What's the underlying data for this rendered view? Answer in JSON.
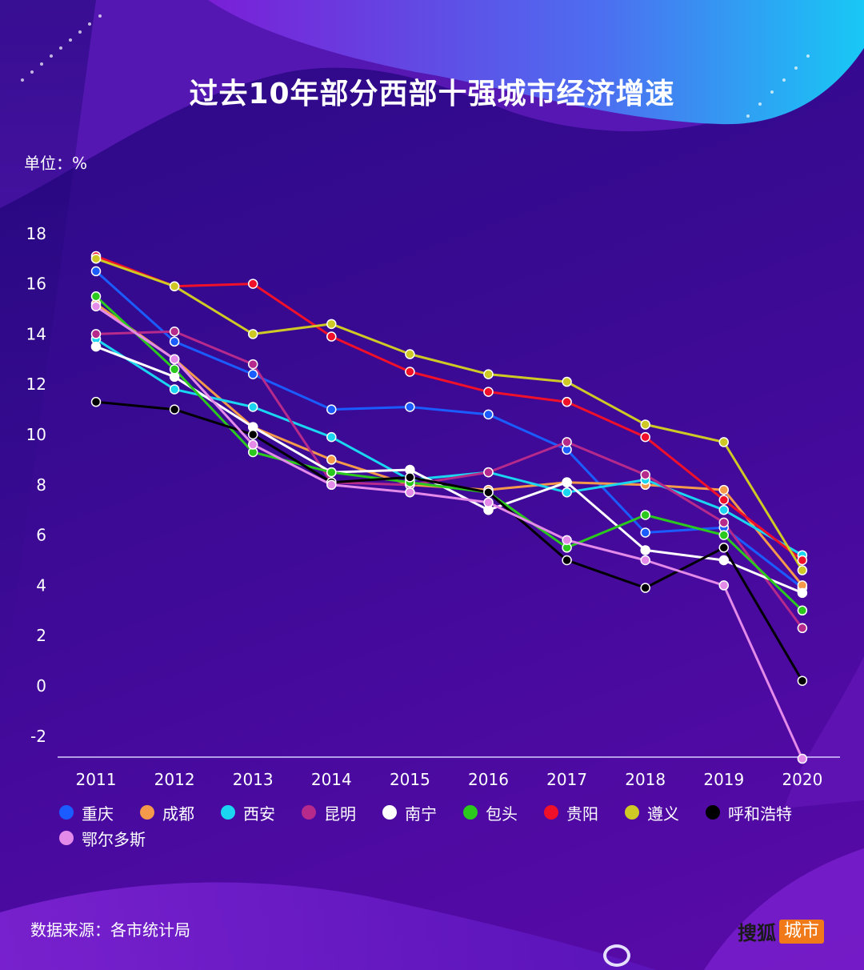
{
  "page": {
    "title": "过去10年部分西部十强城市经济增速",
    "unit": "单位：%",
    "source": "数据来源：各市统计局",
    "brand_name": "搜狐",
    "brand_badge": "城市"
  },
  "chart_data": {
    "type": "line",
    "title": "过去10年部分西部十强城市经济增速",
    "ylabel": "单位：%",
    "xlabel": "",
    "ylim": [
      -3,
      18
    ],
    "yticks": [
      -2,
      0,
      2,
      4,
      6,
      8,
      10,
      12,
      14,
      16,
      18
    ],
    "categories": [
      "2011",
      "2012",
      "2013",
      "2014",
      "2015",
      "2016",
      "2017",
      "2018",
      "2019",
      "2020"
    ],
    "series": [
      {
        "name": "重庆",
        "color": "#1a5cff",
        "values": [
          16.5,
          13.7,
          12.4,
          11.0,
          11.1,
          10.8,
          9.4,
          6.1,
          6.3,
          3.9
        ]
      },
      {
        "name": "成都",
        "color": "#f59a4a",
        "values": [
          15.2,
          13.0,
          10.3,
          9.0,
          8.0,
          7.8,
          8.1,
          8.0,
          7.8,
          4.0
        ]
      },
      {
        "name": "西安",
        "color": "#1ad6f0",
        "values": [
          13.8,
          11.8,
          11.1,
          9.9,
          8.2,
          8.5,
          7.7,
          8.2,
          7.0,
          5.2
        ]
      },
      {
        "name": "昆明",
        "color": "#b52a8a",
        "values": [
          14.0,
          14.1,
          12.8,
          8.1,
          8.0,
          8.5,
          9.7,
          8.4,
          6.5,
          2.3
        ]
      },
      {
        "name": "南宁",
        "color": "#ffffff",
        "values": [
          13.5,
          12.3,
          10.3,
          8.5,
          8.6,
          7.0,
          8.1,
          5.4,
          5.0,
          3.7
        ]
      },
      {
        "name": "包头",
        "color": "#2bc81e",
        "values": [
          15.5,
          12.6,
          9.3,
          8.5,
          8.1,
          7.7,
          5.5,
          6.8,
          6.0,
          3.0
        ]
      },
      {
        "name": "贵阳",
        "color": "#f0102a",
        "values": [
          17.1,
          15.9,
          16.0,
          13.9,
          12.5,
          11.7,
          11.3,
          9.9,
          7.4,
          5.0
        ]
      },
      {
        "name": "遵义",
        "color": "#cfc926",
        "values": [
          17.0,
          15.9,
          14.0,
          14.4,
          13.2,
          12.4,
          12.1,
          10.4,
          9.7,
          4.6
        ]
      },
      {
        "name": "呼和浩特",
        "color": "#000000",
        "values": [
          11.3,
          11.0,
          10.0,
          8.1,
          8.3,
          7.7,
          5.0,
          3.9,
          5.5,
          0.2
        ]
      },
      {
        "name": "鄂尔多斯",
        "color": "#e48ae8",
        "values": [
          15.1,
          13.0,
          9.6,
          8.0,
          7.7,
          7.3,
          5.8,
          5.0,
          4.0,
          -2.9
        ]
      }
    ]
  }
}
